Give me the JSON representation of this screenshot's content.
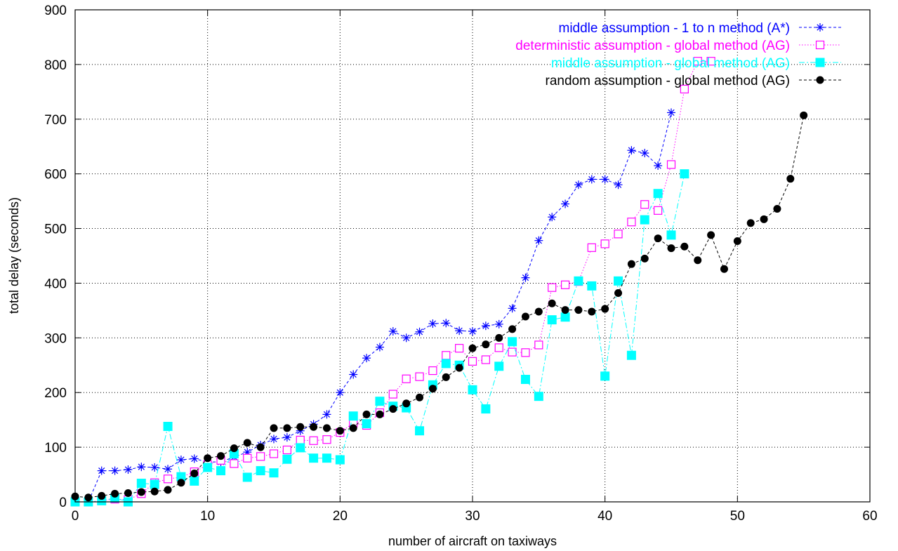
{
  "chart_data": {
    "type": "line",
    "title": "",
    "xlabel": "number of aircraft on taxiways",
    "ylabel": "total delay (seconds)",
    "xlim": [
      0,
      60
    ],
    "ylim": [
      0,
      900
    ],
    "xticks": [
      0,
      10,
      20,
      30,
      40,
      50,
      60
    ],
    "yticks": [
      0,
      100,
      200,
      300,
      400,
      500,
      600,
      700,
      800,
      900
    ],
    "grid": true,
    "legend_position": "top-right",
    "series": [
      {
        "name": "middle assumption - 1 to n method (A*)",
        "color": "#0000ff",
        "line_style": "dashed",
        "marker": "asterisk",
        "x": [
          0,
          1,
          2,
          3,
          4,
          5,
          6,
          7,
          8,
          9,
          10,
          11,
          12,
          13,
          14,
          15,
          16,
          17,
          18,
          19,
          20,
          21,
          22,
          23,
          24,
          25,
          26,
          27,
          28,
          29,
          30,
          31,
          32,
          33,
          34,
          35,
          36,
          37,
          38,
          39,
          40,
          41,
          42,
          43,
          44,
          45
        ],
        "y": [
          0,
          0,
          57,
          57,
          59,
          64,
          63,
          60,
          77,
          79,
          73,
          73,
          82,
          91,
          104,
          115,
          118,
          130,
          142,
          160,
          200,
          233,
          263,
          283,
          312,
          300,
          311,
          326,
          327,
          313,
          312,
          322,
          325,
          354,
          410,
          478,
          521,
          545,
          580,
          590,
          590,
          580,
          643,
          638,
          615,
          712
        ]
      },
      {
        "name": "deterministic assumption - global method (AG)",
        "color": "#ff00ff",
        "line_style": "dotted",
        "marker": "open-square",
        "x": [
          0,
          1,
          2,
          3,
          4,
          5,
          6,
          7,
          8,
          9,
          10,
          11,
          12,
          13,
          14,
          15,
          16,
          17,
          18,
          19,
          20,
          21,
          22,
          23,
          24,
          25,
          26,
          27,
          28,
          29,
          30,
          31,
          32,
          33,
          34,
          35,
          36,
          37,
          38,
          39,
          40,
          41,
          42,
          43,
          44,
          45,
          46,
          47,
          48
        ],
        "y": [
          0,
          0,
          2,
          5,
          4,
          15,
          35,
          42,
          45,
          55,
          68,
          76,
          70,
          80,
          83,
          88,
          95,
          113,
          112,
          114,
          127,
          144,
          140,
          163,
          197,
          225,
          229,
          240,
          268,
          281,
          257,
          260,
          282,
          274,
          273,
          287,
          392,
          397,
          403,
          465,
          472,
          490,
          512,
          544,
          533,
          617,
          755,
          806,
          806
        ]
      },
      {
        "name": "middle assumption - global method (AG)",
        "color": "#00ffff",
        "line_style": "dash-dot",
        "marker": "filled-square",
        "x": [
          0,
          1,
          2,
          3,
          4,
          5,
          6,
          7,
          8,
          9,
          10,
          11,
          12,
          13,
          14,
          15,
          16,
          17,
          18,
          19,
          20,
          21,
          22,
          23,
          24,
          25,
          26,
          27,
          28,
          29,
          30,
          31,
          32,
          33,
          34,
          35,
          36,
          37,
          38,
          39,
          40,
          41,
          42,
          43,
          44,
          45,
          46
        ],
        "y": [
          0,
          0,
          2,
          7,
          0,
          34,
          32,
          138,
          46,
          38,
          63,
          57,
          88,
          45,
          57,
          53,
          78,
          99,
          80,
          80,
          77,
          157,
          143,
          184,
          175,
          172,
          130,
          214,
          253,
          250,
          205,
          170,
          248,
          293,
          224,
          193,
          333,
          338,
          404,
          395,
          230,
          404,
          268,
          516,
          564,
          488,
          600
        ]
      },
      {
        "name": "random assumption - global method (AG)",
        "color": "#000000",
        "line_style": "dashed",
        "marker": "filled-circle",
        "x": [
          0,
          1,
          2,
          3,
          4,
          5,
          6,
          7,
          8,
          9,
          10,
          11,
          12,
          13,
          14,
          15,
          16,
          17,
          18,
          19,
          20,
          21,
          22,
          23,
          24,
          25,
          26,
          27,
          28,
          29,
          30,
          31,
          32,
          33,
          34,
          35,
          36,
          37,
          38,
          39,
          40,
          41,
          42,
          43,
          44,
          45,
          46,
          47,
          48,
          49,
          50,
          51,
          52,
          53,
          54,
          55
        ],
        "y": [
          10,
          8,
          11,
          15,
          16,
          18,
          19,
          22,
          35,
          52,
          80,
          84,
          98,
          108,
          100,
          135,
          135,
          137,
          137,
          135,
          130,
          135,
          160,
          160,
          170,
          180,
          191,
          207,
          228,
          245,
          281,
          288,
          300,
          316,
          339,
          348,
          363,
          351,
          351,
          348,
          353,
          382,
          435,
          445,
          482,
          464,
          467,
          442,
          488,
          426,
          477,
          510,
          517,
          536,
          591,
          707
        ]
      }
    ]
  }
}
